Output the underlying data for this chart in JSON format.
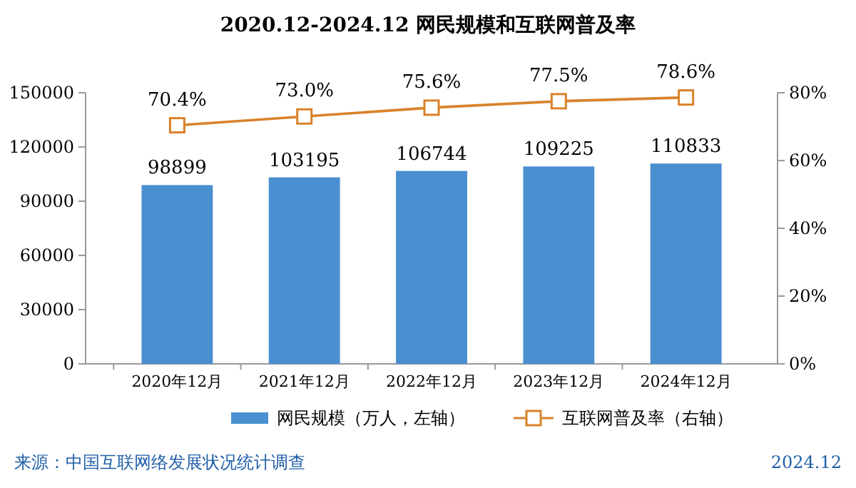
{
  "chart_data": {
    "type": "bar",
    "title": "2020.12-2024.12 网民规模和互联网普及率",
    "categories": [
      "2020年12月",
      "2021年12月",
      "2022年12月",
      "2023年12月",
      "2024年12月"
    ],
    "series": [
      {
        "name": "网民规模（万人，左轴）",
        "color": "#4a8fd0",
        "values": [
          98899,
          103195,
          106744,
          109225,
          110833
        ],
        "value_labels": [
          "98899",
          "103195",
          "106744",
          "109225",
          "110833"
        ]
      },
      {
        "name": "互联网普及率（右轴）",
        "type": "line",
        "axis": "y2",
        "color": "#d9822b",
        "values": [
          70.4,
          73.0,
          75.6,
          77.5,
          78.6
        ],
        "value_labels": [
          "70.4%",
          "73.0%",
          "75.6%",
          "77.5%",
          "78.6%"
        ]
      }
    ],
    "ylim": [
      0,
      150000
    ],
    "yticks": [
      0,
      30000,
      60000,
      90000,
      120000,
      150000
    ],
    "y2lim": [
      0,
      80
    ],
    "y2ticks": [
      {
        "value": 0,
        "label": "0%"
      },
      {
        "value": 20,
        "label": "20%"
      },
      {
        "value": 40,
        "label": "40%"
      },
      {
        "value": 60,
        "label": "60%"
      },
      {
        "value": 80,
        "label": "80%"
      }
    ],
    "marker": "square",
    "legend": "bottom",
    "annotations": [
      "来源：中国互联网络发展状况统计调查",
      "2024.12"
    ]
  }
}
